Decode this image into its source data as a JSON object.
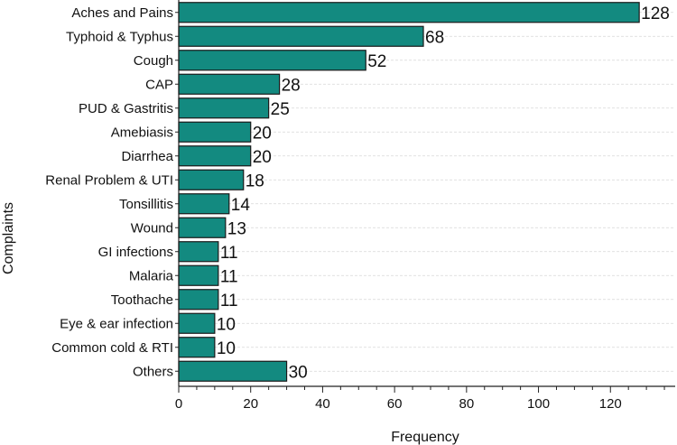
{
  "chart_data": {
    "type": "bar",
    "orientation": "horizontal",
    "title": "",
    "xlabel": "Frequency",
    "ylabel": "Complaints",
    "categories": [
      "Aches and Pains",
      "Typhoid & Typhus",
      "Cough",
      "CAP",
      "PUD & Gastritis",
      "Amebiasis",
      "Diarrhea",
      "Renal Problem & UTI",
      "Tonsillitis",
      "Wound",
      "GI infections",
      "Malaria",
      "Toothache",
      "Eye & ear infection",
      "Common cold & RTI",
      "Others"
    ],
    "values": [
      128,
      68,
      52,
      28,
      25,
      20,
      20,
      18,
      14,
      13,
      11,
      11,
      11,
      10,
      10,
      30
    ],
    "xlim": [
      0,
      138
    ],
    "xticks": [
      0,
      20,
      40,
      60,
      80,
      100,
      120
    ],
    "minor_tick_step": 5,
    "bar_color": "#138a80",
    "bar_edge_color": "#1a1a1a",
    "grid": true,
    "legend": "none"
  }
}
